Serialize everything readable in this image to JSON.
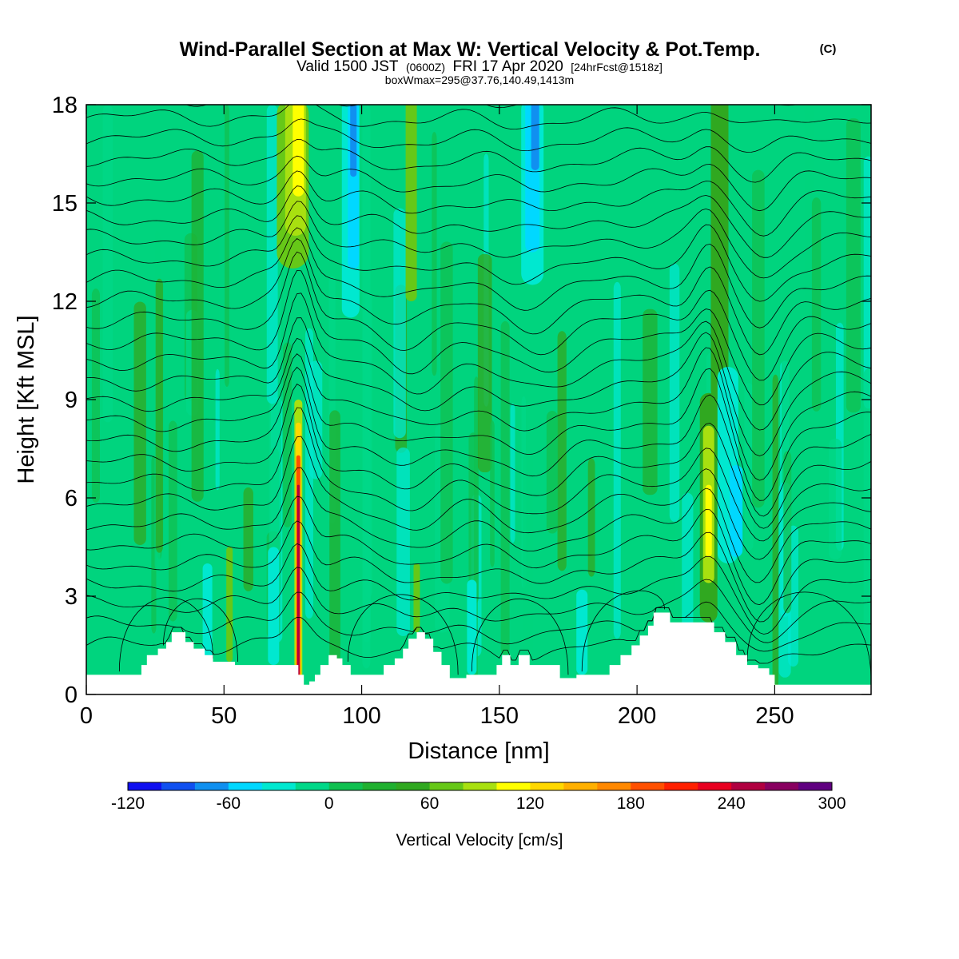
{
  "chart_data": {
    "type": "heatmap",
    "title_main": "Wind-Parallel Section at Max W: Vertical Velocity & Pot.Temp.",
    "title_mark": "(C)",
    "subtitle_a": "Valid 1500 JST",
    "subtitle_b": "(0600Z)",
    "subtitle_c": "FRI 17 Apr 2020",
    "subtitle_d": "[24hrFcst@1518z]",
    "subtitle2": "boxWmax=295@37.76,140.49,1413m",
    "xlabel": "Distance [nm]",
    "ylabel": "Height [Kft MSL]",
    "xlim": [
      0,
      285
    ],
    "ylim": [
      0,
      18
    ],
    "x_ticks": [
      0,
      50,
      100,
      150,
      200,
      250
    ],
    "y_ticks": [
      0,
      3,
      6,
      9,
      12,
      15,
      18
    ],
    "colorbar": {
      "label": "Vertical Velocity [cm/s]",
      "range": [
        -120,
        300
      ],
      "tick_values": [
        -120,
        -60,
        0,
        60,
        120,
        180,
        240,
        300
      ],
      "colors": [
        "#1010f0",
        "#1050f0",
        "#1090f0",
        "#00d8ff",
        "#00e8d0",
        "#00d888",
        "#10c050",
        "#20b030",
        "#30a820",
        "#66c818",
        "#a8e010",
        "#ffff00",
        "#ffd800",
        "#ffb000",
        "#ff8800",
        "#ff5000",
        "#ff2000",
        "#e80020",
        "#b00040",
        "#880060",
        "#600080"
      ]
    },
    "terrain_kft": [
      [
        0,
        0.6
      ],
      [
        18,
        0.6
      ],
      [
        20,
        0.9
      ],
      [
        22,
        1.2
      ],
      [
        26,
        1.4
      ],
      [
        29,
        1.6
      ],
      [
        31,
        1.9
      ],
      [
        34,
        1.9
      ],
      [
        36,
        1.6
      ],
      [
        39,
        1.4
      ],
      [
        43,
        1.2
      ],
      [
        46,
        1.0
      ],
      [
        54,
        0.9
      ],
      [
        62,
        0.9
      ],
      [
        74,
        0.9
      ],
      [
        77,
        0.6
      ],
      [
        79,
        0.3
      ],
      [
        81,
        0.4
      ],
      [
        83,
        0.6
      ],
      [
        85,
        0.9
      ],
      [
        88,
        1.2
      ],
      [
        91,
        1.1
      ],
      [
        93,
        0.9
      ],
      [
        96,
        0.6
      ],
      [
        100,
        0.6
      ],
      [
        104,
        0.6
      ],
      [
        108,
        0.9
      ],
      [
        112,
        1.1
      ],
      [
        115,
        1.4
      ],
      [
        117,
        1.7
      ],
      [
        120,
        1.9
      ],
      [
        123,
        1.7
      ],
      [
        126,
        1.3
      ],
      [
        129,
        0.9
      ],
      [
        132,
        0.5
      ],
      [
        134,
        0.5
      ],
      [
        138,
        0.6
      ],
      [
        146,
        0.6
      ],
      [
        149,
        0.9
      ],
      [
        151,
        1.2
      ],
      [
        153,
        1.2
      ],
      [
        154,
        0.9
      ],
      [
        156,
        0.9
      ],
      [
        157,
        1.2
      ],
      [
        159,
        1.2
      ],
      [
        161,
        0.9
      ],
      [
        170,
        0.9
      ],
      [
        172,
        0.5
      ],
      [
        178,
        0.6
      ],
      [
        185,
        0.6
      ],
      [
        190,
        0.9
      ],
      [
        194,
        1.2
      ],
      [
        198,
        1.5
      ],
      [
        201,
        1.8
      ],
      [
        204,
        2.1
      ],
      [
        206,
        2.5
      ],
      [
        210,
        2.5
      ],
      [
        212,
        2.2
      ],
      [
        225,
        2.2
      ],
      [
        228,
        1.9
      ],
      [
        232,
        1.6
      ],
      [
        236,
        1.2
      ],
      [
        240,
        0.9
      ],
      [
        244,
        0.8
      ],
      [
        248,
        0.6
      ],
      [
        250,
        0.3
      ],
      [
        254,
        0.3
      ],
      [
        285,
        0.3
      ]
    ],
    "updrafts": [
      {
        "x": 77,
        "z_bottom": 0.3,
        "z_top": 8.8,
        "peak_cm_s": 295
      },
      {
        "x": 226,
        "z_bottom": 2.2,
        "z_top": 9.0,
        "peak_cm_s": 120
      },
      {
        "x": 77,
        "z_bottom": 13.5,
        "z_top": 18.0,
        "peak_cm_s": 100
      }
    ],
    "downdrafts": [
      {
        "x": 97,
        "z_bottom": 12.0,
        "z_top": 18.0,
        "peak_cm_s": -90
      },
      {
        "x": 162,
        "z_bottom": 13.0,
        "z_top": 18.0,
        "peak_cm_s": -90
      },
      {
        "x": 235,
        "z_bottom": 4.0,
        "z_top": 10.0,
        "peak_cm_s": -50
      }
    ],
    "isentrope_count": 28
  }
}
